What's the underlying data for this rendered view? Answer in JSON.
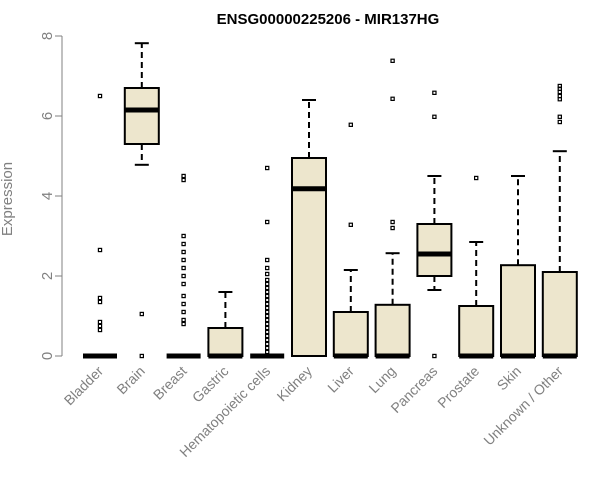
{
  "chart_data": {
    "type": "box",
    "title": "ENSG00000225206 - MIR137HG",
    "xlabel": "",
    "ylabel": "Expression",
    "ylim": [
      0,
      8
    ],
    "yticks": [
      0,
      2,
      4,
      6,
      8
    ],
    "categories": [
      "Bladder",
      "Brain",
      "Breast",
      "Gastric",
      "Hematopoietic cells",
      "Kidney",
      "Liver",
      "Lung",
      "Pancreas",
      "Prostate",
      "Skin",
      "Unknown / Other"
    ],
    "colors": {
      "box_fill": "#ede6cd",
      "stroke": "#000000",
      "text": "#808080"
    },
    "boxes": [
      {
        "category": "Bladder",
        "q1": 0,
        "median": 0,
        "q3": 0,
        "whisker_low": 0,
        "whisker_high": 0,
        "outliers": [
          6.5,
          2.65,
          1.45,
          1.35,
          0.85,
          0.75,
          0.65
        ]
      },
      {
        "category": "Brain",
        "q1": 5.3,
        "median": 6.15,
        "q3": 6.7,
        "whisker_low": 4.78,
        "whisker_high": 7.82,
        "outliers": [
          1.05,
          0
        ]
      },
      {
        "category": "Breast",
        "q1": 0,
        "median": 0,
        "q3": 0,
        "whisker_low": 0,
        "whisker_high": 0,
        "outliers": [
          4.5,
          4.4,
          3.0,
          2.8,
          2.6,
          2.4,
          2.2,
          2.0,
          1.8,
          1.5,
          1.3,
          1.1,
          0.9,
          0.8
        ]
      },
      {
        "category": "Gastric",
        "q1": 0,
        "median": 0,
        "q3": 0.7,
        "whisker_low": 0,
        "whisker_high": 1.6,
        "outliers": []
      },
      {
        "category": "Hematopoietic cells",
        "q1": 0,
        "median": 0,
        "q3": 0,
        "whisker_low": 0,
        "whisker_high": 0,
        "outliers": [
          4.7,
          3.35,
          2.4,
          2.2,
          2.05,
          1.9,
          1.8,
          1.7,
          1.6,
          1.5,
          1.4,
          1.3,
          1.2,
          1.1,
          1.0,
          0.9,
          0.8,
          0.7,
          0.6,
          0.5,
          0.4,
          0.3,
          0.2,
          0.1
        ]
      },
      {
        "category": "Kidney",
        "q1": 0,
        "median": 4.18,
        "q3": 4.95,
        "whisker_low": 0,
        "whisker_high": 6.4,
        "outliers": []
      },
      {
        "category": "Liver",
        "q1": 0,
        "median": 0,
        "q3": 1.1,
        "whisker_low": 0,
        "whisker_high": 2.15,
        "outliers": [
          5.78,
          3.28
        ]
      },
      {
        "category": "Lung",
        "q1": 0,
        "median": 0,
        "q3": 1.28,
        "whisker_low": 0,
        "whisker_high": 2.57,
        "outliers": [
          7.38,
          6.43,
          3.35,
          3.2
        ]
      },
      {
        "category": "Pancreas",
        "q1": 2.0,
        "median": 2.55,
        "q3": 3.3,
        "whisker_low": 1.65,
        "whisker_high": 4.5,
        "outliers": [
          6.58,
          5.98,
          0
        ]
      },
      {
        "category": "Prostate",
        "q1": 0,
        "median": 0,
        "q3": 1.25,
        "whisker_low": 0,
        "whisker_high": 2.85,
        "outliers": [
          4.45
        ]
      },
      {
        "category": "Skin",
        "q1": 0,
        "median": 0,
        "q3": 2.27,
        "whisker_low": 0,
        "whisker_high": 4.5,
        "outliers": []
      },
      {
        "category": "Unknown / Other",
        "q1": 0,
        "median": 0,
        "q3": 2.1,
        "whisker_low": 0,
        "whisker_high": 5.12,
        "outliers": [
          6.75,
          6.68,
          6.6,
          6.5,
          6.42,
          5.98,
          5.85
        ]
      }
    ]
  }
}
